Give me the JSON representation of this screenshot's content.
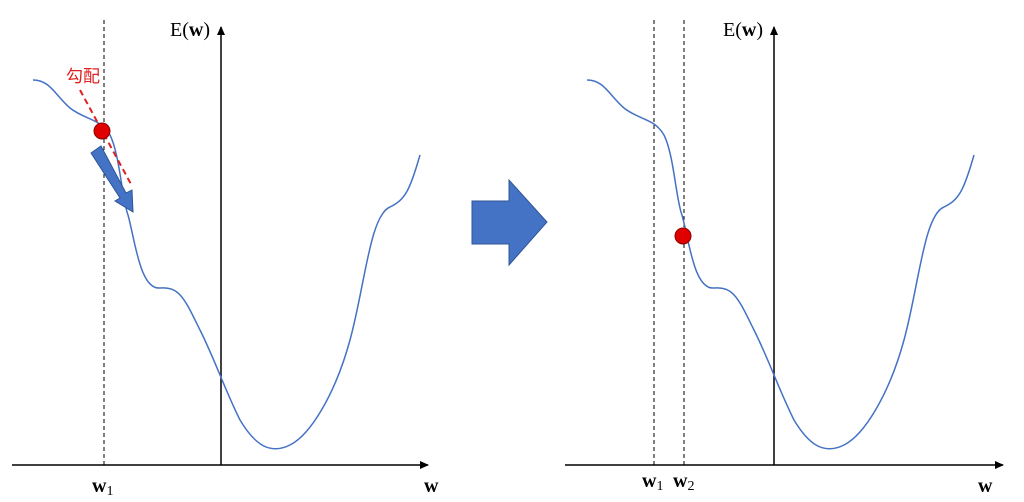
{
  "left": {
    "y_axis_label": {
      "prefix": "E(",
      "var": "w",
      "suffix": ")"
    },
    "x_axis_label": "w",
    "gradient_label": "勾配",
    "w1_label": {
      "base": "w",
      "subscript": "1"
    }
  },
  "right": {
    "y_axis_label": {
      "prefix": "E(",
      "var": "w",
      "suffix": ")"
    },
    "x_axis_label": "w",
    "w1_label": {
      "base": "w",
      "subscript": "1"
    },
    "w2_label": {
      "base": "w",
      "subscript": "2"
    }
  }
}
